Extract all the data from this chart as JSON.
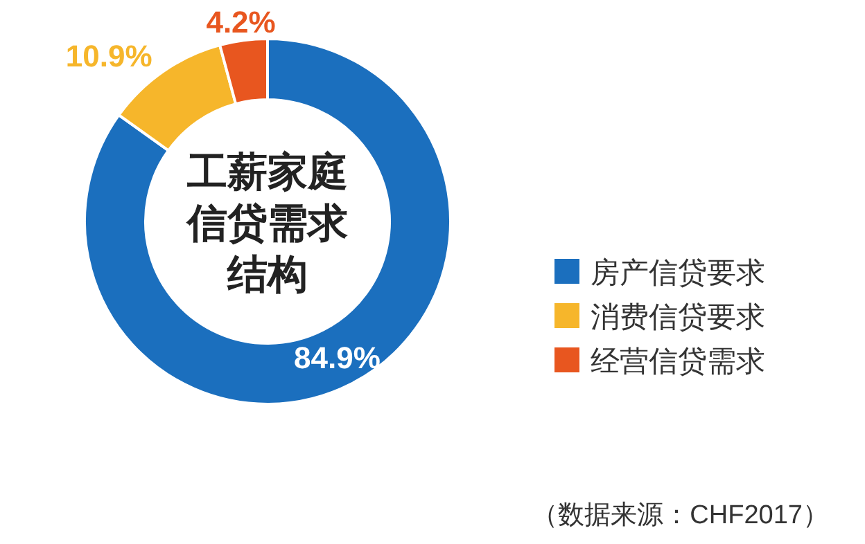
{
  "chart_data": {
    "type": "donut",
    "title": "工薪家庭信贷需求结构",
    "categories": [
      "房产信贷要求",
      "消费信贷要求",
      "经营信贷需求"
    ],
    "values": [
      84.9,
      10.9,
      4.2
    ],
    "colors": [
      "#1b6fbe",
      "#f6b62b",
      "#e8561f"
    ],
    "value_labels": [
      "84.9%",
      "10.9%",
      "4.2%"
    ],
    "legend": "right",
    "annotations": [
      "（数据来源：CHF2017）"
    ]
  }
}
